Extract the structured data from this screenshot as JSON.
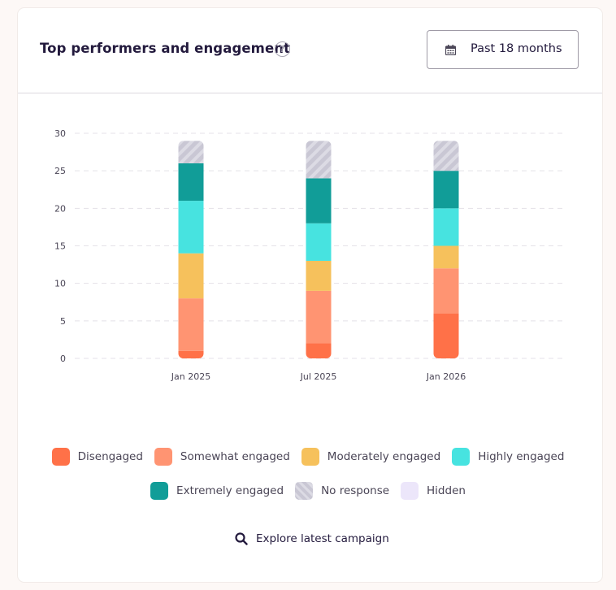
{
  "header": {
    "title": "Top performers and engagement",
    "help_glyph": "?",
    "range_label": "Past 18 months"
  },
  "chart_data": {
    "type": "bar",
    "stacked": true,
    "categories": [
      "Jan 2025",
      "Jul 2025",
      "Jan 2026"
    ],
    "series": [
      {
        "name": "Disengaged",
        "color": "#ff7148",
        "values": [
          1,
          2,
          6
        ]
      },
      {
        "name": "Somewhat engaged",
        "color": "#ff9472",
        "values": [
          7,
          7,
          6
        ]
      },
      {
        "name": "Moderately engaged",
        "color": "#f6c15c",
        "values": [
          6,
          4,
          3
        ]
      },
      {
        "name": "Highly engaged",
        "color": "#47e3e0",
        "values": [
          7,
          5,
          5
        ]
      },
      {
        "name": "Extremely engaged",
        "color": "#119d98",
        "values": [
          5,
          6,
          5
        ]
      },
      {
        "name": "No response",
        "color": "#c9c7d4",
        "values": [
          3,
          5,
          4
        ]
      },
      {
        "name": "Hidden",
        "color": "#ece6fa",
        "values": [
          0,
          0,
          0
        ]
      }
    ],
    "ylim": [
      0,
      30
    ],
    "yticks": [
      0,
      5,
      10,
      15,
      20,
      25,
      30
    ],
    "grid": true
  },
  "footer": {
    "explore_label": "Explore latest campaign"
  }
}
